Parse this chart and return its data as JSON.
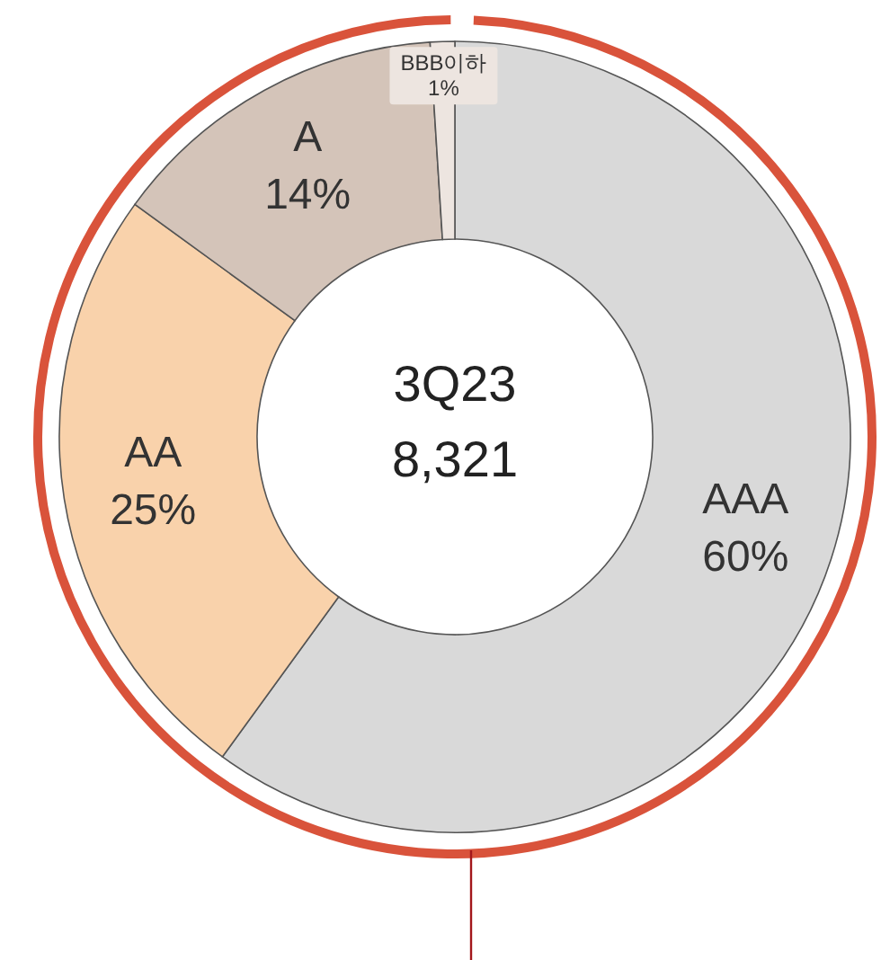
{
  "chart_data": {
    "type": "donut",
    "categories": [
      "AAA",
      "AA",
      "A",
      "BBB이하"
    ],
    "values": [
      60,
      25,
      14,
      1
    ],
    "colors": [
      "#d9d9d9",
      "#f9d2ab",
      "#d4c4b9",
      "#ede5e0"
    ],
    "value_labels": [
      "60%",
      "25%",
      "14%",
      "1%"
    ],
    "annotations": [
      "3Q23",
      "8,321"
    ]
  }
}
